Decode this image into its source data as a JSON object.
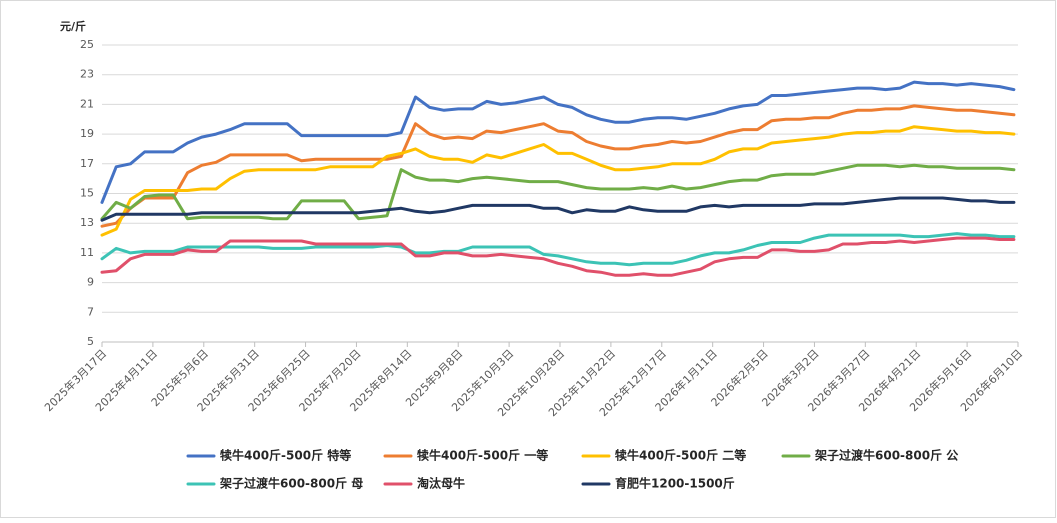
{
  "chart_data": {
    "type": "line",
    "y_label": "元/斤",
    "x": [
      "2025-03-17",
      "2025-03-24",
      "2025-03-31",
      "2025-04-07",
      "2025-04-14",
      "2025-04-21",
      "2025-04-28",
      "2025-05-05",
      "2025-05-12",
      "2025-05-19",
      "2025-05-26",
      "2025-06-02",
      "2025-06-09",
      "2025-06-16",
      "2025-06-23",
      "2025-06-30",
      "2025-07-07",
      "2025-07-14",
      "2025-07-21",
      "2025-07-28",
      "2025-08-04",
      "2025-08-11",
      "2025-08-18",
      "2025-08-25",
      "2025-09-01",
      "2025-09-08",
      "2025-09-15",
      "2025-09-22",
      "2025-09-29",
      "2025-10-06",
      "2025-10-13",
      "2025-10-20",
      "2025-10-27",
      "2025-11-03",
      "2025-11-10",
      "2025-11-17",
      "2025-11-24",
      "2025-12-01",
      "2025-12-08",
      "2025-12-15",
      "2025-12-22",
      "2025-12-29",
      "2026-01-05",
      "2026-01-12",
      "2026-01-19",
      "2026-01-26",
      "2026-02-02",
      "2026-02-09",
      "2026-02-16",
      "2026-02-23",
      "2026-03-02",
      "2026-03-09",
      "2026-03-16",
      "2026-03-23",
      "2026-03-30",
      "2026-04-06",
      "2026-04-13",
      "2026-04-20",
      "2026-04-27",
      "2026-05-04",
      "2026-05-11",
      "2026-05-18",
      "2026-05-25",
      "2026-06-01",
      "2026-06-08"
    ],
    "xlim": [
      "2025-03-17",
      "2026-06-10"
    ],
    "xticks": [
      {
        "value": "2025-03-17",
        "label": "2025年3月17日"
      },
      {
        "value": "2025-04-11",
        "label": "2025年4月11日"
      },
      {
        "value": "2025-05-06",
        "label": "2025年5月6日"
      },
      {
        "value": "2025-05-31",
        "label": "2025年5月31日"
      },
      {
        "value": "2025-06-25",
        "label": "2025年6月25日"
      },
      {
        "value": "2025-07-20",
        "label": "2025年7月20日"
      },
      {
        "value": "2025-08-14",
        "label": "2025年8月14日"
      },
      {
        "value": "2025-09-08",
        "label": "2025年9月8日"
      },
      {
        "value": "2025-10-03",
        "label": "2025年10月3日"
      },
      {
        "value": "2025-10-28",
        "label": "2025年10月28日"
      },
      {
        "value": "2025-11-22",
        "label": "2025年11月22日"
      },
      {
        "value": "2025-12-17",
        "label": "2025年12月17日"
      },
      {
        "value": "2026-01-11",
        "label": "2026年1月11日"
      },
      {
        "value": "2026-02-05",
        "label": "2026年2月5日"
      },
      {
        "value": "2026-03-02",
        "label": "2026年3月2日"
      },
      {
        "value": "2026-03-27",
        "label": "2026年3月27日"
      },
      {
        "value": "2026-04-21",
        "label": "2026年4月21日"
      },
      {
        "value": "2026-05-16",
        "label": "2026年5月16日"
      },
      {
        "value": "2026-06-10",
        "label": "2026年6月10日"
      }
    ],
    "ylim": [
      5,
      25
    ],
    "yticks": [
      5,
      7,
      9,
      11,
      13,
      15,
      17,
      19,
      21,
      23,
      25
    ],
    "grid": true,
    "legend_position": "bottom",
    "series": [
      {
        "name": "犊牛400斤-500斤 特等",
        "color": "#4472c4",
        "values": [
          14.4,
          16.8,
          17.0,
          17.8,
          17.8,
          17.8,
          18.4,
          18.8,
          19.0,
          19.3,
          19.7,
          19.7,
          19.7,
          19.7,
          18.9,
          18.9,
          18.9,
          18.9,
          18.9,
          18.9,
          18.9,
          19.1,
          21.5,
          20.8,
          20.6,
          20.7,
          20.7,
          21.2,
          21.0,
          21.1,
          21.3,
          21.5,
          21.0,
          20.8,
          20.3,
          20.0,
          19.8,
          19.8,
          20.0,
          20.1,
          20.1,
          20.0,
          20.2,
          20.4,
          20.7,
          20.9,
          21.0,
          21.6,
          21.6,
          21.7,
          21.8,
          21.9,
          22.0,
          22.1,
          22.1,
          22.0,
          22.1,
          22.5,
          22.4,
          22.4,
          22.3,
          22.4,
          22.3,
          22.2,
          22.0
        ]
      },
      {
        "name": "犊牛400斤-500斤 一等",
        "color": "#ed7d31",
        "values": [
          12.8,
          13.0,
          14.0,
          14.7,
          14.7,
          14.7,
          16.4,
          16.9,
          17.1,
          17.6,
          17.6,
          17.6,
          17.6,
          17.6,
          17.2,
          17.3,
          17.3,
          17.3,
          17.3,
          17.3,
          17.3,
          17.5,
          19.7,
          19.0,
          18.7,
          18.8,
          18.7,
          19.2,
          19.1,
          19.3,
          19.5,
          19.7,
          19.2,
          19.1,
          18.5,
          18.2,
          18.0,
          18.0,
          18.2,
          18.3,
          18.5,
          18.4,
          18.5,
          18.8,
          19.1,
          19.3,
          19.3,
          19.9,
          20.0,
          20.0,
          20.1,
          20.1,
          20.4,
          20.6,
          20.6,
          20.7,
          20.7,
          20.9,
          20.8,
          20.7,
          20.6,
          20.6,
          20.5,
          20.4,
          20.3
        ]
      },
      {
        "name": "犊牛400斤-500斤 二等",
        "color": "#ffc000",
        "values": [
          12.2,
          12.6,
          14.6,
          15.2,
          15.2,
          15.2,
          15.2,
          15.3,
          15.3,
          16.0,
          16.5,
          16.6,
          16.6,
          16.6,
          16.6,
          16.6,
          16.8,
          16.8,
          16.8,
          16.8,
          17.5,
          17.7,
          18.0,
          17.5,
          17.3,
          17.3,
          17.1,
          17.6,
          17.4,
          17.7,
          18.0,
          18.3,
          17.7,
          17.7,
          17.3,
          16.9,
          16.6,
          16.6,
          16.7,
          16.8,
          17.0,
          17.0,
          17.0,
          17.3,
          17.8,
          18.0,
          18.0,
          18.4,
          18.5,
          18.6,
          18.7,
          18.8,
          19.0,
          19.1,
          19.1,
          19.2,
          19.2,
          19.5,
          19.4,
          19.3,
          19.2,
          19.2,
          19.1,
          19.1,
          19.0
        ]
      },
      {
        "name": "架子过渡牛600-800斤 公",
        "color": "#70ad47",
        "values": [
          13.3,
          14.4,
          14.0,
          14.8,
          14.9,
          14.9,
          13.3,
          13.4,
          13.4,
          13.4,
          13.4,
          13.4,
          13.3,
          13.3,
          14.5,
          14.5,
          14.5,
          14.5,
          13.3,
          13.4,
          13.5,
          16.6,
          16.1,
          15.9,
          15.9,
          15.8,
          16.0,
          16.1,
          16.0,
          15.9,
          15.8,
          15.8,
          15.8,
          15.6,
          15.4,
          15.3,
          15.3,
          15.3,
          15.4,
          15.3,
          15.5,
          15.3,
          15.4,
          15.6,
          15.8,
          15.9,
          15.9,
          16.2,
          16.3,
          16.3,
          16.3,
          16.5,
          16.7,
          16.9,
          16.9,
          16.9,
          16.8,
          16.9,
          16.8,
          16.8,
          16.7,
          16.7,
          16.7,
          16.7,
          16.6
        ]
      },
      {
        "name": "架子过渡牛600-800斤 母",
        "color": "#3cc3b5",
        "values": [
          10.6,
          11.3,
          11.0,
          11.1,
          11.1,
          11.1,
          11.4,
          11.4,
          11.4,
          11.4,
          11.4,
          11.4,
          11.3,
          11.3,
          11.3,
          11.4,
          11.4,
          11.4,
          11.4,
          11.4,
          11.5,
          11.4,
          11.0,
          11.0,
          11.1,
          11.1,
          11.4,
          11.4,
          11.4,
          11.4,
          11.4,
          10.9,
          10.8,
          10.6,
          10.4,
          10.3,
          10.3,
          10.2,
          10.3,
          10.3,
          10.3,
          10.5,
          10.8,
          11.0,
          11.0,
          11.2,
          11.5,
          11.7,
          11.7,
          11.7,
          12.0,
          12.2,
          12.2,
          12.2,
          12.2,
          12.2,
          12.2,
          12.1,
          12.1,
          12.2,
          12.3,
          12.2,
          12.2,
          12.1,
          12.1
        ]
      },
      {
        "name": "淘汰母牛",
        "color": "#e0506a",
        "values": [
          9.7,
          9.8,
          10.6,
          10.9,
          10.9,
          10.9,
          11.2,
          11.1,
          11.1,
          11.8,
          11.8,
          11.8,
          11.8,
          11.8,
          11.8,
          11.6,
          11.6,
          11.6,
          11.6,
          11.6,
          11.6,
          11.6,
          10.8,
          10.8,
          11.0,
          11.0,
          10.8,
          10.8,
          10.9,
          10.8,
          10.7,
          10.6,
          10.3,
          10.1,
          9.8,
          9.7,
          9.5,
          9.5,
          9.6,
          9.5,
          9.5,
          9.7,
          9.9,
          10.4,
          10.6,
          10.7,
          10.7,
          11.2,
          11.2,
          11.1,
          11.1,
          11.2,
          11.6,
          11.6,
          11.7,
          11.7,
          11.8,
          11.7,
          11.8,
          11.9,
          12.0,
          12.0,
          12.0,
          11.9,
          11.9
        ]
      },
      {
        "name": "育肥牛1200-1500斤",
        "color": "#203864",
        "values": [
          13.2,
          13.6,
          13.6,
          13.6,
          13.6,
          13.6,
          13.6,
          13.7,
          13.7,
          13.7,
          13.7,
          13.7,
          13.7,
          13.7,
          13.7,
          13.7,
          13.7,
          13.7,
          13.7,
          13.8,
          13.9,
          14.0,
          13.8,
          13.7,
          13.8,
          14.0,
          14.2,
          14.2,
          14.2,
          14.2,
          14.2,
          14.0,
          14.0,
          13.7,
          13.9,
          13.8,
          13.8,
          14.1,
          13.9,
          13.8,
          13.8,
          13.8,
          14.1,
          14.2,
          14.1,
          14.2,
          14.2,
          14.2,
          14.2,
          14.2,
          14.3,
          14.3,
          14.3,
          14.4,
          14.5,
          14.6,
          14.7,
          14.7,
          14.7,
          14.7,
          14.6,
          14.5,
          14.5,
          14.4,
          14.4
        ]
      }
    ]
  }
}
